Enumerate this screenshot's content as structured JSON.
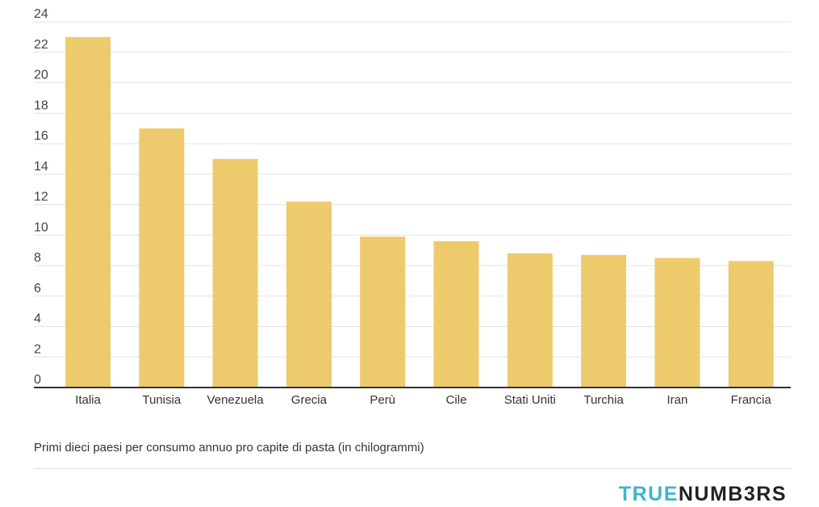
{
  "chart_data": {
    "type": "bar",
    "categories": [
      "Italia",
      "Tunisia",
      "Venezuela",
      "Grecia",
      "Perù",
      "Cile",
      "Stati Uniti",
      "Turchia",
      "Iran",
      "Francia"
    ],
    "values": [
      23,
      17,
      15,
      12.2,
      9.9,
      9.6,
      8.8,
      8.7,
      8.5,
      8.3
    ],
    "ylim": [
      0,
      24
    ],
    "yticks": [
      "0",
      "2",
      "4",
      "6",
      "8",
      "10",
      "12",
      "14",
      "16",
      "18",
      "20",
      "22",
      "24"
    ],
    "grid": true,
    "colors": {
      "bar": "#edca6b",
      "grid": "#e3e3e3",
      "axis": "#333333"
    }
  },
  "caption": "Primi dieci paesi per consumo annuo pro capite di pasta (in chilogrammi)",
  "brand": {
    "part1": "TRUE",
    "part2": "NUMB3RS"
  }
}
